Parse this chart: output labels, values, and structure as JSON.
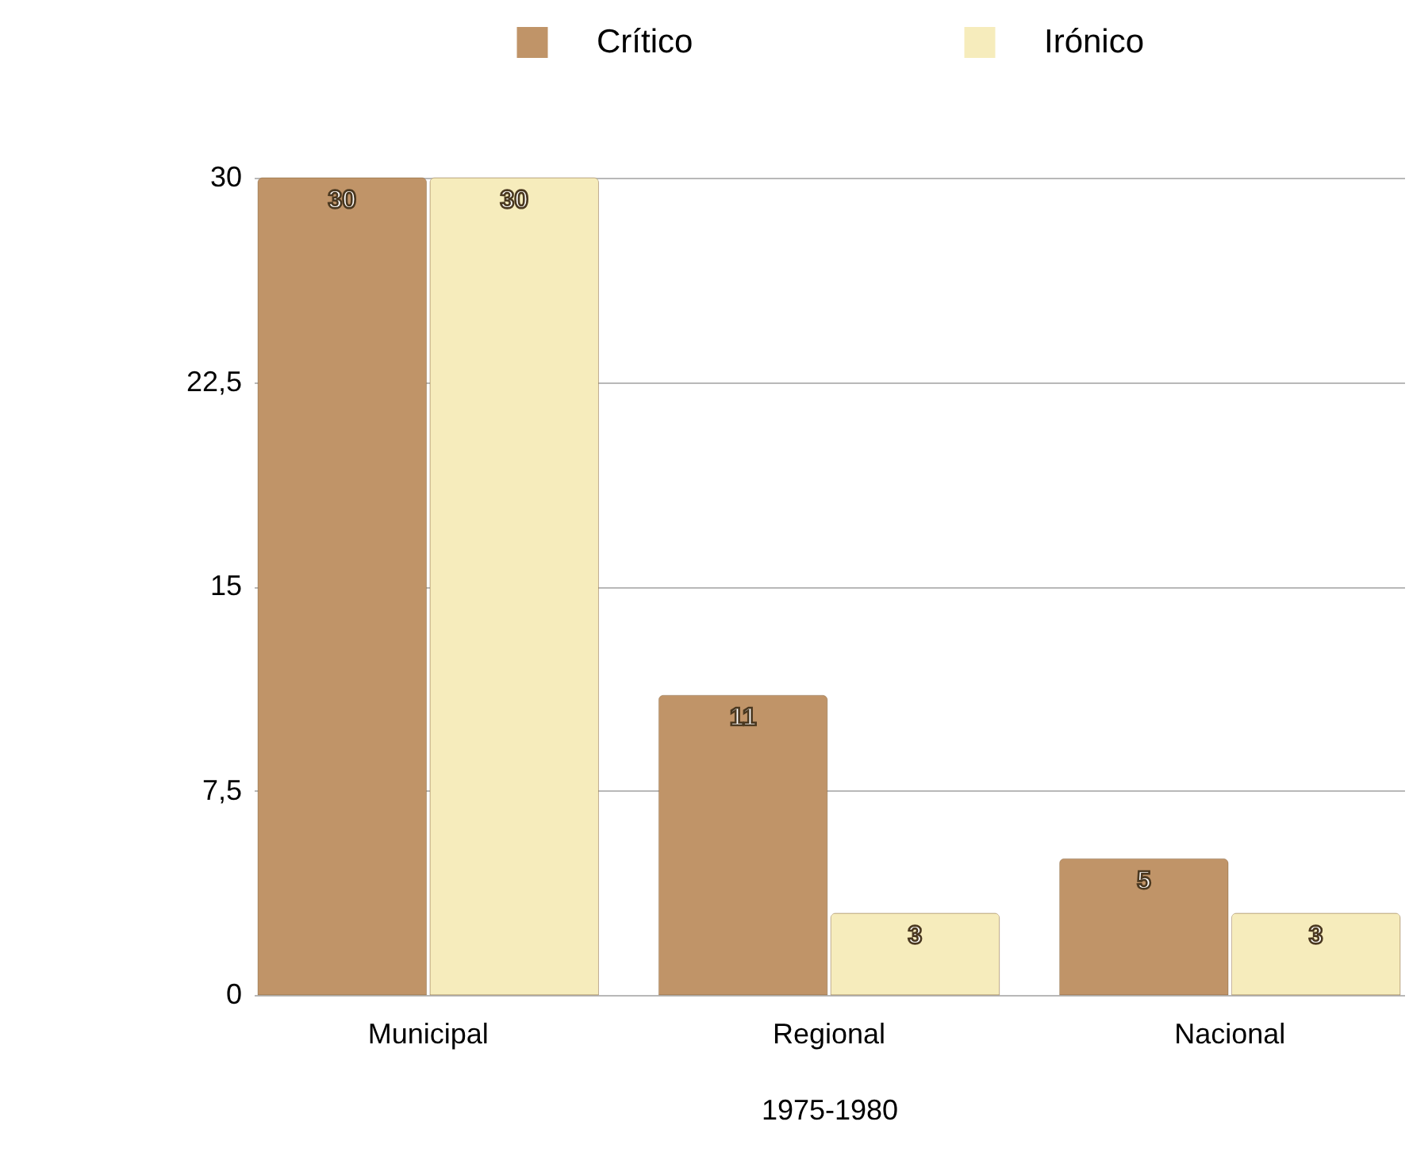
{
  "chart_data": {
    "type": "bar",
    "xlabel": "1975-1980",
    "categories": [
      "Municipal",
      "Regional",
      "Nacional"
    ],
    "series": [
      {
        "name": "Crítico",
        "color": "#c09468",
        "values": [
          30,
          11,
          5
        ]
      },
      {
        "name": "Irónico",
        "color": "#f6ecbc",
        "values": [
          30,
          3,
          3
        ]
      }
    ],
    "ylim": [
      0,
      30
    ],
    "yticks": [
      0,
      {
        "value": 7.5,
        "label": "7,5"
      },
      15,
      {
        "value": 22.5,
        "label": "22,5"
      },
      30
    ],
    "grid": "y",
    "legend": "top",
    "data_labels": true
  }
}
